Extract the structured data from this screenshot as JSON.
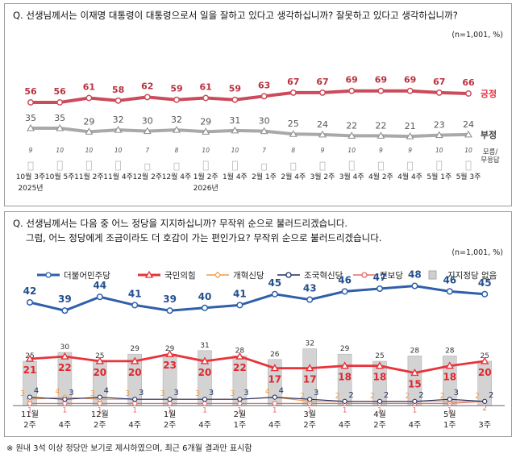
{
  "footnote": "※ 원내 3석 이상 정당만 보기로 제시하였으며, 최근 6개월 결과만 표시함",
  "colors": {
    "positive": "#cc4b5a",
    "negative": "#a9a9a9",
    "minjoo": "#2f5faa",
    "ppp": "#e8333a",
    "reform": "#f29a4a",
    "rebuild": "#1f2e66",
    "progressive": "#e46a6a",
    "none": "#cfcfcf"
  },
  "chart_data": [
    {
      "type": "line",
      "question": "Q. 선생님께서는 이재명 대통령이 대통령으로서 일을 잘하고 있다고 생각하십니까? 잘못하고 있다고 생각하십니까?",
      "n_label": "(n=1,001, %)",
      "categories": [
        "10월 3주",
        "10월 5주",
        "11월 2주",
        "11월 4주",
        "12월 2주",
        "12월 4주",
        "1월 2주",
        "1월 4주",
        "2월 1주",
        "2월 4주",
        "3월 2주",
        "3월 4주",
        "4월 2주",
        "4월 4주",
        "5월 1주",
        "5월 3주"
      ],
      "year_labels": [
        {
          "index": 0,
          "text": "2025년"
        },
        {
          "index": 6,
          "text": "2026년"
        }
      ],
      "series": [
        {
          "name": "긍정",
          "values": [
            56,
            56,
            61,
            58,
            62,
            59,
            61,
            59,
            63,
            67,
            67,
            69,
            69,
            69,
            67,
            66
          ]
        },
        {
          "name": "부정",
          "values": [
            35,
            35,
            29,
            32,
            30,
            32,
            29,
            31,
            30,
            25,
            24,
            22,
            22,
            21,
            23,
            24
          ]
        },
        {
          "name": "모름/ 무응답",
          "values": [
            9,
            10,
            10,
            10,
            7,
            8,
            10,
            10,
            7,
            8,
            9,
            10,
            9,
            9,
            10,
            10
          ]
        }
      ]
    },
    {
      "type": "line",
      "question_lines": [
        "Q. 선생님께서는 다음 중 어느 정당을 지지하십니까? 무작위 순으로 불러드리겠습니다.",
        "그럼, 어느 정당에게 조금이라도 더 호감이 가는 편인가요? 무작위 순으로 불러드리겠습니다."
      ],
      "n_label": "(n=1,001, %)",
      "categories": [
        "11월 2주",
        "4주",
        "12월 2주",
        "4주",
        "1월 2주",
        "4주",
        "2월 1주",
        "4주",
        "3월 2주",
        "4주",
        "4월 2주",
        "4주",
        "5월 1주",
        "3주"
      ],
      "tick_month": [
        "11월",
        "",
        "12월",
        "",
        "1월",
        "",
        "2월",
        "",
        "3월",
        "",
        "4월",
        "",
        "5월",
        ""
      ],
      "tick_week": [
        "2주",
        "4주",
        "2주",
        "4주",
        "2주",
        "4주",
        "1주",
        "4주",
        "2주",
        "4주",
        "2주",
        "4주",
        "1주",
        "3주"
      ],
      "series": [
        {
          "name": "더불어민주당",
          "values": [
            42,
            39,
            44,
            41,
            39,
            40,
            41,
            45,
            43,
            46,
            47,
            48,
            46,
            45
          ]
        },
        {
          "name": "국민의힘",
          "values": [
            21,
            22,
            20,
            20,
            23,
            20,
            22,
            17,
            17,
            18,
            18,
            15,
            18,
            20
          ]
        },
        {
          "name": "개혁신당",
          "values": [
            3,
            4,
            3,
            3,
            3,
            3,
            3,
            4,
            2,
            2,
            2,
            2,
            2,
            2
          ]
        },
        {
          "name": "조국혁신당",
          "values": [
            4,
            3,
            4,
            3,
            3,
            3,
            3,
            4,
            3,
            2,
            2,
            2,
            3,
            2
          ]
        },
        {
          "name": "진보당",
          "values": [
            1,
            1,
            1,
            1,
            1,
            1,
            1,
            1,
            1,
            1,
            1,
            1,
            1,
            2
          ]
        },
        {
          "name": "지지정당 없음",
          "values": [
            25,
            30,
            25,
            29,
            29,
            31,
            28,
            26,
            32,
            29,
            25,
            28,
            28,
            25
          ]
        }
      ]
    }
  ]
}
